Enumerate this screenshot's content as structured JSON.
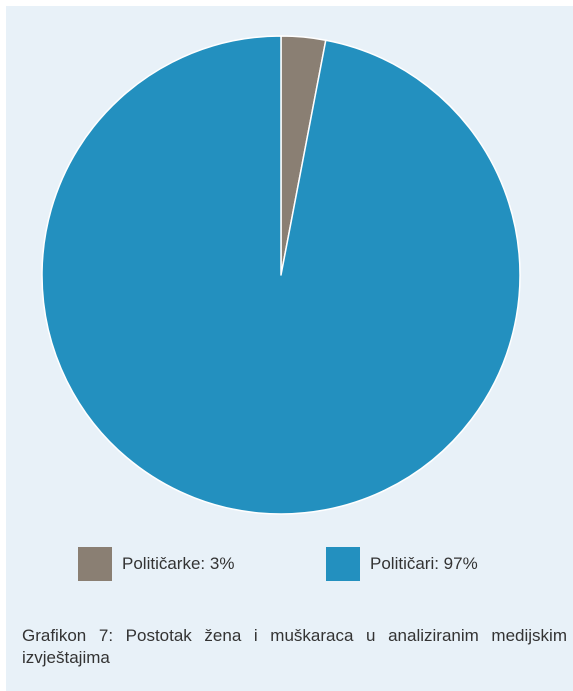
{
  "chart_data": {
    "type": "pie",
    "categories": [
      "Političarke",
      "Političari"
    ],
    "values": [
      3,
      97
    ],
    "unit": "%",
    "colors": [
      "#8a7f73",
      "#2390bf"
    ],
    "legend_placement": "bottom",
    "legend": [
      {
        "label": "Političarke: 3%",
        "color": "#8a7f73"
      },
      {
        "label": "Političari: 97%",
        "color": "#2390bf"
      }
    ],
    "caption": "Grafikon 7: Postotak žena i muškaraca u analiziranim medijskim izvještajima"
  }
}
